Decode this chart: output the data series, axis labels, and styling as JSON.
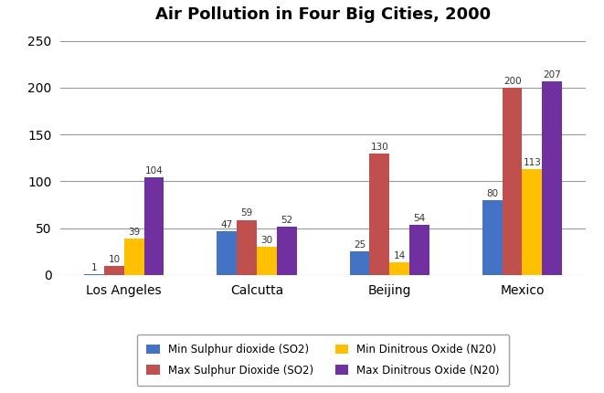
{
  "title": "Air Pollution in Four Big Cities, 2000",
  "cities": [
    "Los Angeles",
    "Calcutta",
    "Beijing",
    "Mexico"
  ],
  "series": [
    {
      "label": "Min Sulphur dioxide (SO2)",
      "color": "#4472C4",
      "values": [
        1,
        47,
        25,
        80
      ]
    },
    {
      "label": "Max Sulphur Dioxide (SO2)",
      "color": "#C0504D",
      "values": [
        10,
        59,
        130,
        200
      ]
    },
    {
      "label": "Min Dinitrous Oxide (N20)",
      "color": "#FFC000",
      "values": [
        39,
        30,
        14,
        113
      ]
    },
    {
      "label": "Max Dinitrous Oxide (N20)",
      "color": "#7030A0",
      "values": [
        104,
        52,
        54,
        207
      ]
    }
  ],
  "ylim": [
    0,
    260
  ],
  "yticks": [
    0,
    50,
    100,
    150,
    200,
    250
  ],
  "bar_width": 0.15,
  "background_color": "#ffffff",
  "grid_color": "#999999",
  "title_fontsize": 13,
  "tick_fontsize": 10,
  "label_fontsize": 8.5,
  "value_fontsize": 7.5
}
